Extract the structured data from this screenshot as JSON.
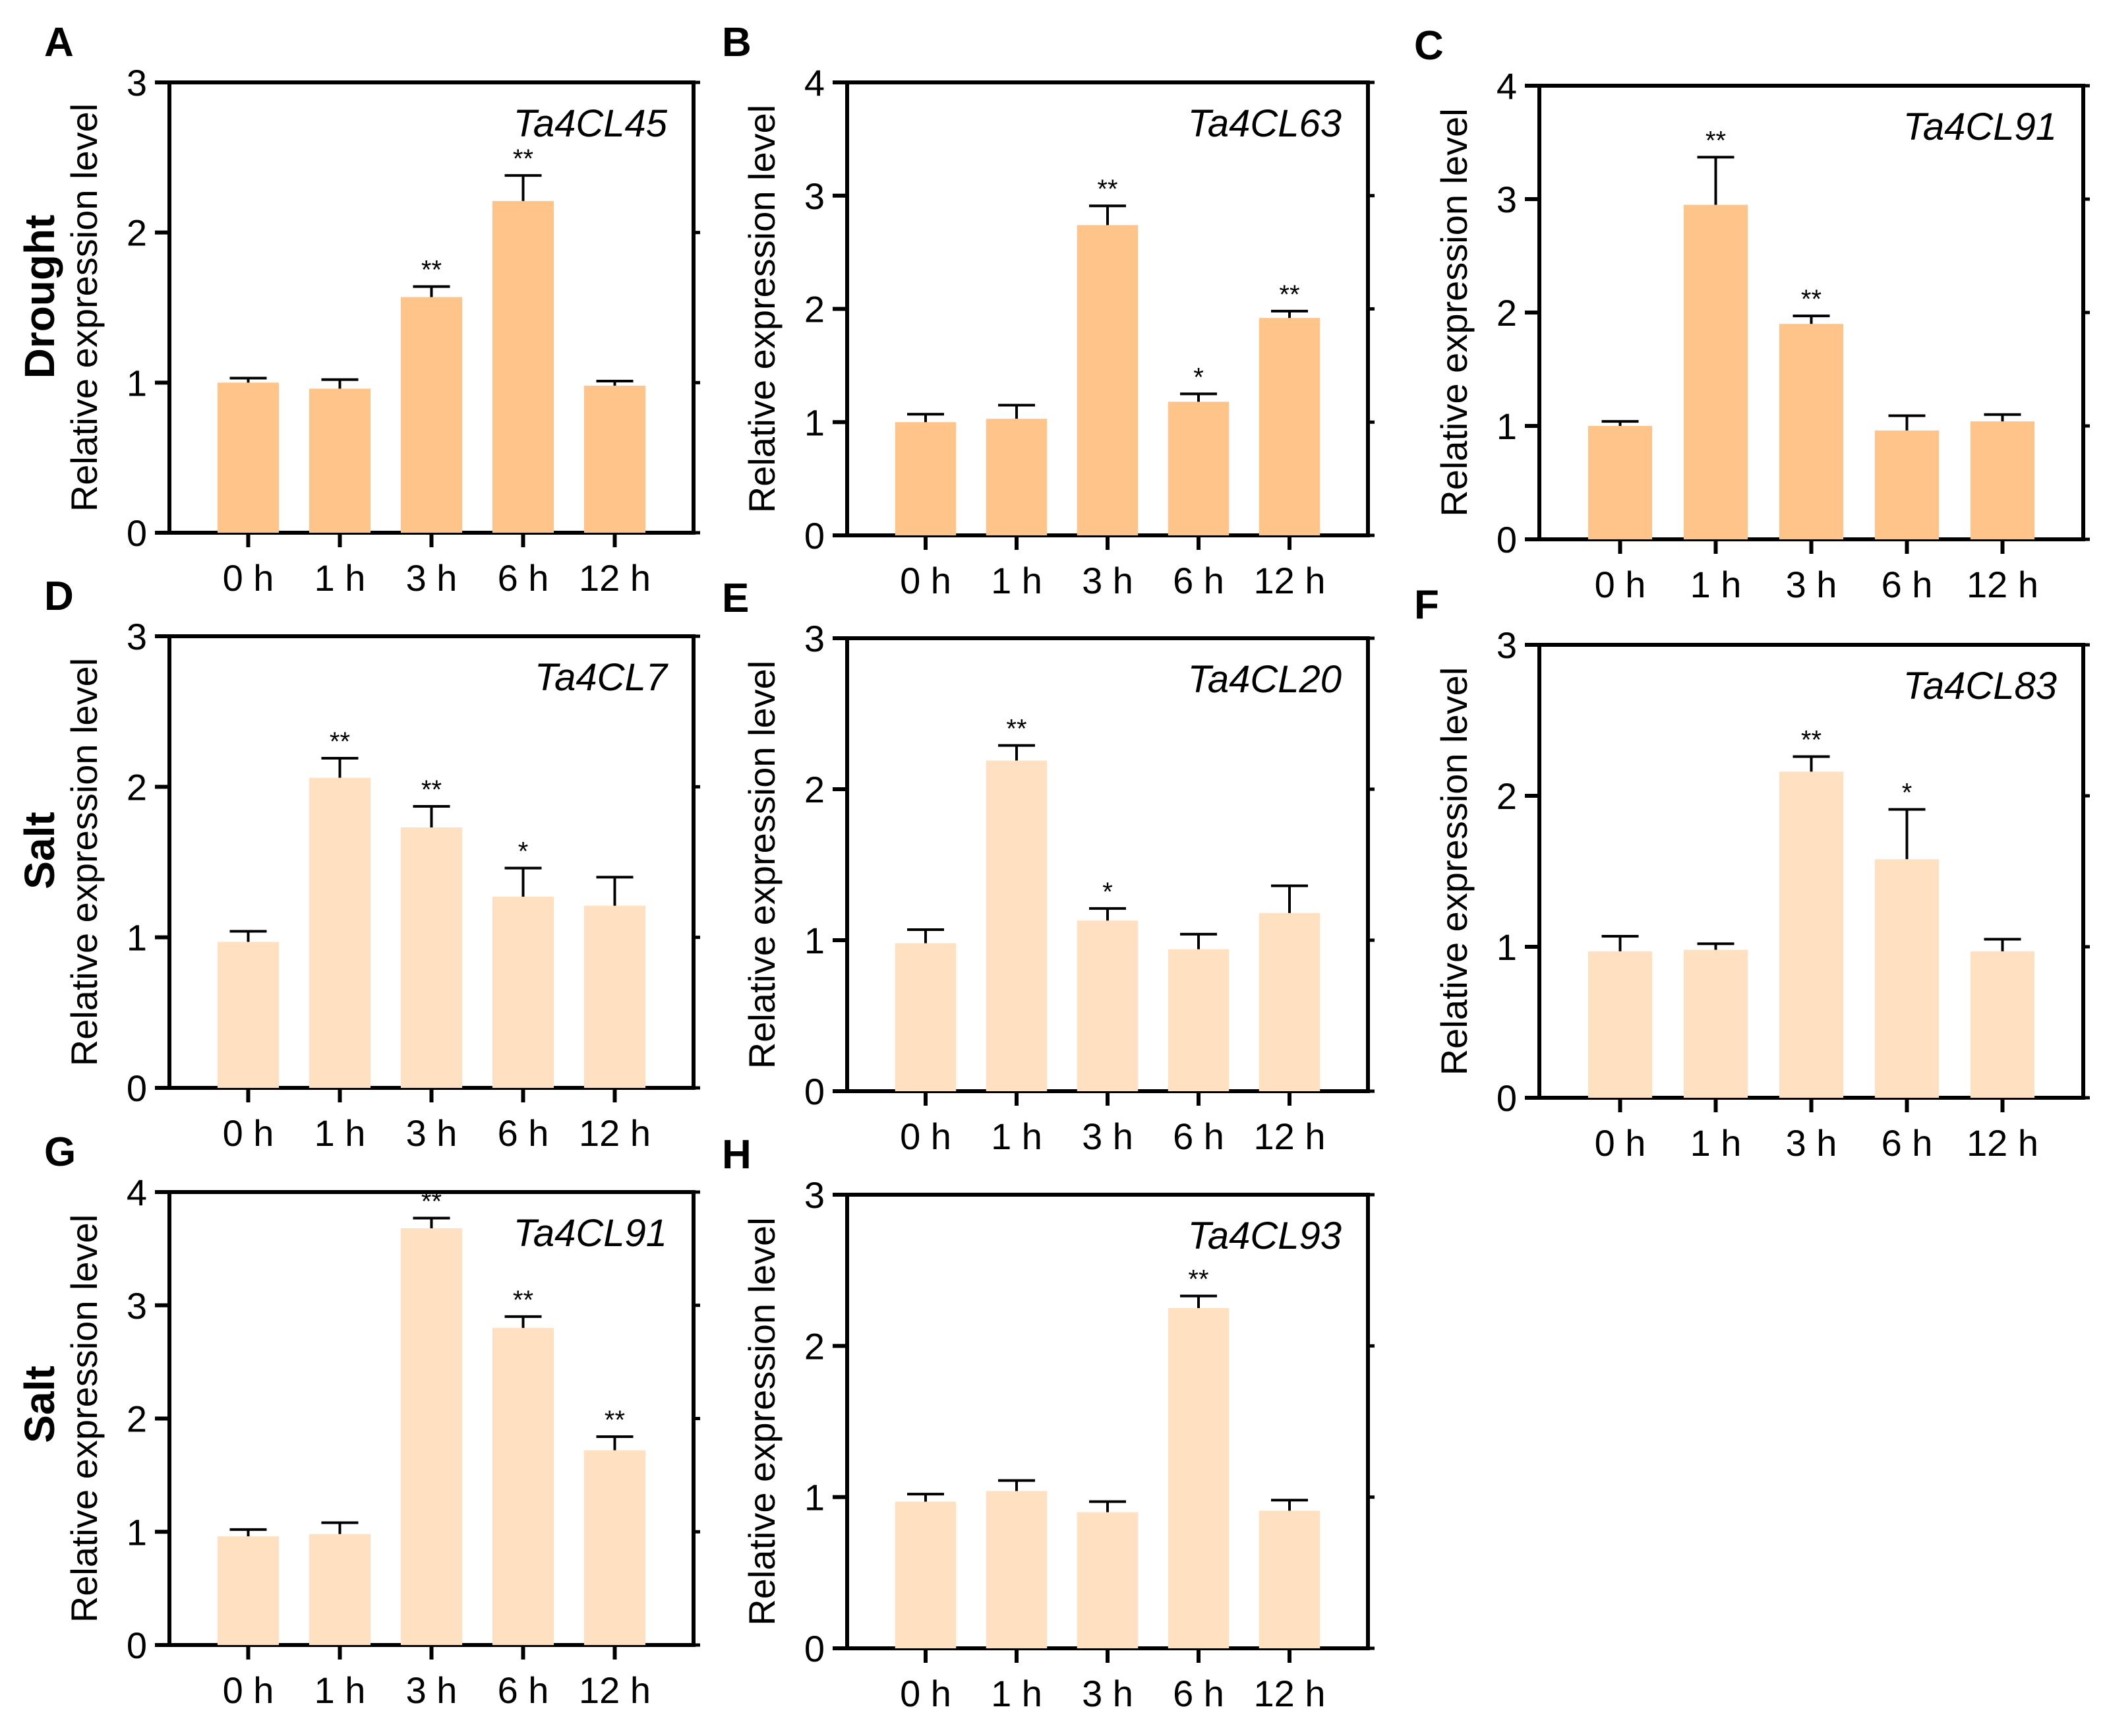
{
  "row_labels": [
    "Drought",
    "Salt",
    "Salt"
  ],
  "colors": {
    "drought_bar": "#FFC48A",
    "salt_bar": "#FFE1C1",
    "axis": "#000000"
  },
  "chart_data": [
    {
      "panel": "A",
      "type": "bar",
      "title": "Ta4CL45",
      "ylabel": "Relative expression level",
      "xlabel": "",
      "categories": [
        "0 h",
        "1 h",
        "3 h",
        "6 h",
        "12 h"
      ],
      "values": [
        1.0,
        0.96,
        1.57,
        2.21,
        0.98
      ],
      "errors": [
        0.03,
        0.06,
        0.07,
        0.17,
        0.03
      ],
      "significance": [
        "",
        "",
        "**",
        "**",
        ""
      ],
      "ylim": [
        0,
        3
      ],
      "yticks": [
        0,
        1,
        2,
        3
      ],
      "condition": "Drought"
    },
    {
      "panel": "B",
      "type": "bar",
      "title": "Ta4CL63",
      "ylabel": "Relative expression level",
      "xlabel": "",
      "categories": [
        "0 h",
        "1 h",
        "3 h",
        "6 h",
        "12 h"
      ],
      "values": [
        1.0,
        1.03,
        2.74,
        1.18,
        1.92
      ],
      "errors": [
        0.07,
        0.12,
        0.17,
        0.07,
        0.06
      ],
      "significance": [
        "",
        "",
        "**",
        "*",
        "**"
      ],
      "ylim": [
        0,
        4
      ],
      "yticks": [
        0,
        1,
        2,
        3,
        4
      ],
      "condition": "Drought"
    },
    {
      "panel": "C",
      "type": "bar",
      "title": "Ta4CL91",
      "ylabel": "Relative expression level",
      "xlabel": "",
      "categories": [
        "0 h",
        "1 h",
        "3 h",
        "6 h",
        "12 h"
      ],
      "values": [
        1.0,
        2.95,
        1.9,
        0.96,
        1.04
      ],
      "errors": [
        0.04,
        0.42,
        0.07,
        0.13,
        0.06
      ],
      "significance": [
        "",
        "**",
        "**",
        "",
        ""
      ],
      "ylim": [
        0,
        4
      ],
      "yticks": [
        0,
        1,
        2,
        3,
        4
      ],
      "condition": "Drought"
    },
    {
      "panel": "D",
      "type": "bar",
      "title": "Ta4CL7",
      "ylabel": "Relative expression level",
      "xlabel": "",
      "categories": [
        "0 h",
        "1 h",
        "3 h",
        "6 h",
        "12 h"
      ],
      "values": [
        0.97,
        2.06,
        1.73,
        1.27,
        1.21
      ],
      "errors": [
        0.07,
        0.13,
        0.14,
        0.19,
        0.19
      ],
      "significance": [
        "",
        "**",
        "**",
        "*",
        ""
      ],
      "ylim": [
        0,
        3
      ],
      "yticks": [
        0,
        1,
        2,
        3
      ],
      "condition": "Salt"
    },
    {
      "panel": "E",
      "type": "bar",
      "title": "Ta4CL20",
      "ylabel": "Relative expression level",
      "xlabel": "",
      "categories": [
        "0 h",
        "1 h",
        "3 h",
        "6 h",
        "12 h"
      ],
      "values": [
        0.98,
        2.19,
        1.13,
        0.94,
        1.18
      ],
      "errors": [
        0.09,
        0.1,
        0.08,
        0.1,
        0.18
      ],
      "significance": [
        "",
        "**",
        "*",
        "",
        ""
      ],
      "ylim": [
        0,
        3
      ],
      "yticks": [
        0,
        1,
        2,
        3
      ],
      "condition": "Salt"
    },
    {
      "panel": "F",
      "type": "bar",
      "title": "Ta4CL83",
      "ylabel": "Relative expression level",
      "xlabel": "",
      "categories": [
        "0 h",
        "1 h",
        "3 h",
        "6 h",
        "12 h"
      ],
      "values": [
        0.97,
        0.98,
        2.16,
        1.58,
        0.97
      ],
      "errors": [
        0.1,
        0.04,
        0.1,
        0.33,
        0.08
      ],
      "significance": [
        "",
        "",
        "**",
        "*",
        ""
      ],
      "ylim": [
        0,
        3
      ],
      "yticks": [
        0,
        1,
        2,
        3
      ],
      "condition": "Salt"
    },
    {
      "panel": "G",
      "type": "bar",
      "title": "Ta4CL91",
      "ylabel": "Relative expression level",
      "xlabel": "",
      "categories": [
        "0 h",
        "1 h",
        "3 h",
        "6 h",
        "12 h"
      ],
      "values": [
        0.96,
        0.98,
        3.68,
        2.8,
        1.72
      ],
      "errors": [
        0.06,
        0.1,
        0.09,
        0.1,
        0.12
      ],
      "significance": [
        "",
        "",
        "**",
        "**",
        "**"
      ],
      "ylim": [
        0,
        4
      ],
      "yticks": [
        0,
        1,
        2,
        3,
        4
      ],
      "condition": "Salt"
    },
    {
      "panel": "H",
      "type": "bar",
      "title": "Ta4CL93",
      "ylabel": "Relative expression level",
      "xlabel": "",
      "categories": [
        "0 h",
        "1 h",
        "3 h",
        "6 h",
        "12 h"
      ],
      "values": [
        0.97,
        1.04,
        0.9,
        2.25,
        0.91
      ],
      "errors": [
        0.05,
        0.07,
        0.07,
        0.08,
        0.07
      ],
      "significance": [
        "",
        "",
        "",
        "**",
        ""
      ],
      "ylim": [
        0,
        3
      ],
      "yticks": [
        0,
        1,
        2,
        3
      ],
      "condition": "Salt"
    }
  ]
}
